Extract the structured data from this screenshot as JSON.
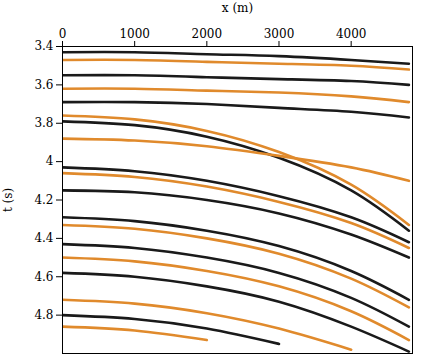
{
  "chart_data": {
    "type": "line",
    "xlabel": "x (m)",
    "ylabel": "t (s)",
    "x": [
      0,
      1000,
      2000,
      3000,
      4000,
      4800
    ],
    "series": [
      {
        "color": "#1a1a1a",
        "values": [
          3.43,
          3.43,
          3.44,
          3.45,
          3.47,
          3.49
        ]
      },
      {
        "color": "#e08a2c",
        "values": [
          3.47,
          3.47,
          3.48,
          3.49,
          3.5,
          3.52
        ]
      },
      {
        "color": "#1a1a1a",
        "values": [
          3.55,
          3.55,
          3.56,
          3.57,
          3.58,
          3.6
        ]
      },
      {
        "color": "#e08a2c",
        "values": [
          3.62,
          3.62,
          3.63,
          3.64,
          3.66,
          3.69
        ]
      },
      {
        "color": "#1a1a1a",
        "values": [
          3.69,
          3.69,
          3.7,
          3.72,
          3.74,
          3.77
        ]
      },
      {
        "color": "#e08a2c",
        "values": [
          3.76,
          3.78,
          3.84,
          3.95,
          4.12,
          4.33
        ]
      },
      {
        "color": "#1a1a1a",
        "values": [
          3.79,
          3.81,
          3.87,
          3.98,
          4.15,
          4.36
        ]
      },
      {
        "color": "#e08a2c",
        "values": [
          3.88,
          3.89,
          3.92,
          3.97,
          4.03,
          4.1
        ]
      },
      {
        "color": "#1a1a1a",
        "values": [
          4.03,
          4.05,
          4.1,
          4.18,
          4.29,
          4.42
        ]
      },
      {
        "color": "#e08a2c",
        "values": [
          4.06,
          4.08,
          4.13,
          4.21,
          4.32,
          4.45
        ]
      },
      {
        "color": "#1a1a1a",
        "values": [
          4.15,
          4.16,
          4.2,
          4.27,
          4.38,
          4.5
        ]
      },
      {
        "color": "#1a1a1a",
        "values": [
          4.29,
          4.31,
          4.36,
          4.44,
          4.57,
          4.72
        ]
      },
      {
        "color": "#e08a2c",
        "values": [
          4.33,
          4.35,
          4.4,
          4.48,
          4.61,
          4.76
        ]
      },
      {
        "color": "#1a1a1a",
        "values": [
          4.43,
          4.45,
          4.5,
          4.58,
          4.71,
          4.86
        ]
      },
      {
        "color": "#e08a2c",
        "values": [
          4.5,
          4.52,
          4.57,
          4.65,
          4.78,
          4.93
        ]
      },
      {
        "color": "#1a1a1a",
        "values": [
          4.58,
          4.6,
          4.65,
          4.73,
          4.86,
          4.99
        ]
      },
      {
        "color": "#e08a2c",
        "values": [
          4.72,
          4.74,
          4.79,
          4.87,
          4.98,
          null
        ]
      },
      {
        "color": "#1a1a1a",
        "values": [
          4.8,
          4.82,
          4.87,
          4.95,
          null,
          null
        ]
      },
      {
        "color": "#e08a2c",
        "values": [
          4.86,
          4.88,
          4.93,
          null,
          null,
          null
        ]
      }
    ],
    "xlim": [
      0,
      4850
    ],
    "ylim": [
      3.4,
      5.0
    ],
    "xticks": [
      0,
      1000,
      2000,
      3000,
      4000
    ],
    "yticks": [
      3.4,
      3.6,
      3.8,
      4,
      4.2,
      4.4,
      4.6,
      4.8
    ],
    "grid": false
  }
}
